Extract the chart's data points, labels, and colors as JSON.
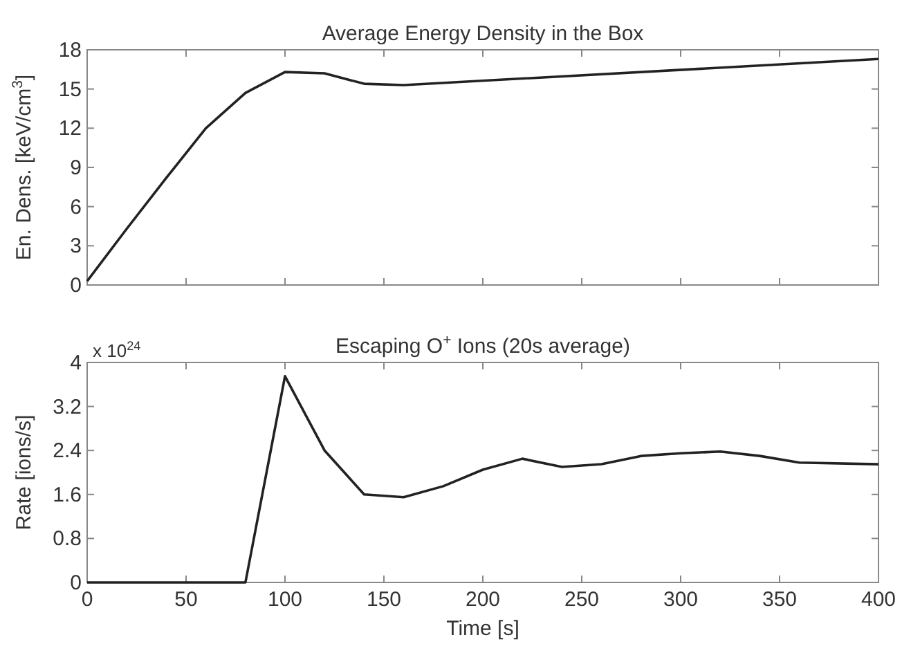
{
  "chart_data": [
    {
      "type": "line",
      "title": "Average Energy Density in the Box",
      "ylabel": "En. Dens. [keV/cm$^{3}$]",
      "x": [
        0,
        20,
        40,
        60,
        80,
        100,
        120,
        140,
        160,
        400
      ],
      "series": [
        {
          "color": "#222222",
          "values": [
            0.3,
            4.3,
            8.2,
            12,
            14.7,
            16.3,
            16.2,
            15.4,
            15.3,
            17.3
          ]
        }
      ],
      "xlim": [
        0,
        400
      ],
      "xticks": [
        0,
        50,
        100,
        150,
        200,
        250,
        300,
        350,
        400
      ],
      "ylim": [
        0,
        18
      ],
      "yticks": [
        0,
        3,
        6,
        9,
        12,
        15,
        18
      ],
      "tick_labels": "y",
      "grid": false
    },
    {
      "type": "line",
      "title": "Escaping O$^{+}$ Ions (20s average)",
      "xlabel": "Time [s]",
      "ylabel": "Rate [ions/s]",
      "annotations": [
        "x 10$^{24}$"
      ],
      "x": [
        0,
        20,
        40,
        60,
        80,
        100,
        120,
        140,
        160,
        180,
        200,
        220,
        240,
        260,
        280,
        300,
        320,
        340,
        360,
        400
      ],
      "series": [
        {
          "color": "#222222",
          "values": [
            0,
            0,
            0,
            0,
            0,
            3.75,
            2.4,
            1.6,
            1.55,
            1.75,
            2.05,
            2.25,
            2.1,
            2.15,
            2.3,
            2.35,
            2.38,
            2.3,
            2.18,
            2.15
          ]
        }
      ],
      "xlim": [
        0,
        400
      ],
      "xticks": [
        0,
        50,
        100,
        150,
        200,
        250,
        300,
        350,
        400
      ],
      "ylim": [
        0,
        4
      ],
      "yticks": [
        0,
        0.8,
        1.6,
        2.4,
        3.2,
        4
      ],
      "grid": false
    }
  ]
}
